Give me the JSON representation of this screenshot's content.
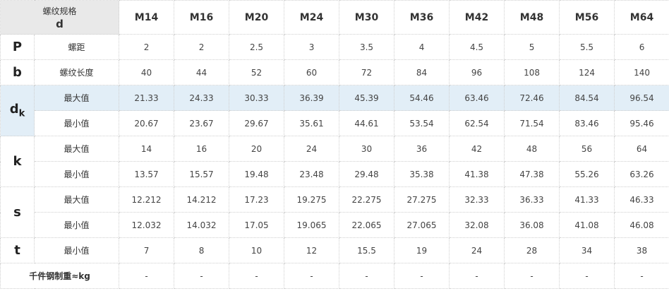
{
  "header": {
    "label": "螺纹规格",
    "symbol": "d",
    "sizes": [
      "M14",
      "M16",
      "M20",
      "M24",
      "M30",
      "M36",
      "M42",
      "M48",
      "M56",
      "M64"
    ]
  },
  "groups": [
    {
      "symbol": "P",
      "rows": [
        {
          "name": "螺距",
          "values": [
            "2",
            "2",
            "2.5",
            "3",
            "3.5",
            "4",
            "4.5",
            "5",
            "5.5",
            "6"
          ]
        }
      ]
    },
    {
      "symbol": "b",
      "rows": [
        {
          "name": "螺纹长度",
          "values": [
            "40",
            "44",
            "52",
            "60",
            "72",
            "84",
            "96",
            "108",
            "124",
            "140"
          ]
        }
      ]
    },
    {
      "symbol": "d",
      "subscript": "k",
      "rows": [
        {
          "name": "最大值",
          "values": [
            "21.33",
            "24.33",
            "30.33",
            "36.39",
            "45.39",
            "54.46",
            "63.46",
            "72.46",
            "84.54",
            "96.54"
          ]
        },
        {
          "name": "最小值",
          "values": [
            "20.67",
            "23.67",
            "29.67",
            "35.61",
            "44.61",
            "53.54",
            "62.54",
            "71.54",
            "83.46",
            "95.46"
          ]
        }
      ]
    },
    {
      "symbol": "k",
      "rows": [
        {
          "name": "最大值",
          "values": [
            "14",
            "16",
            "20",
            "24",
            "30",
            "36",
            "42",
            "48",
            "56",
            "64"
          ]
        },
        {
          "name": "最小值",
          "values": [
            "13.57",
            "15.57",
            "19.48",
            "23.48",
            "29.48",
            "35.38",
            "41.38",
            "47.38",
            "55.26",
            "63.26"
          ]
        }
      ]
    },
    {
      "symbol": "s",
      "rows": [
        {
          "name": "最大值",
          "values": [
            "12.212",
            "14.212",
            "17.23",
            "19.275",
            "22.275",
            "27.275",
            "32.33",
            "36.33",
            "41.33",
            "46.33"
          ]
        },
        {
          "name": "最小值",
          "values": [
            "12.032",
            "14.032",
            "17.05",
            "19.065",
            "22.065",
            "27.065",
            "32.08",
            "36.08",
            "41.08",
            "46.08"
          ]
        }
      ]
    },
    {
      "symbol": "t",
      "rows": [
        {
          "name": "最小值",
          "values": [
            "7",
            "8",
            "10",
            "12",
            "15.5",
            "19",
            "24",
            "28",
            "34",
            "38"
          ]
        }
      ]
    }
  ],
  "weight": {
    "label": "千件钢制重≈kg",
    "values": [
      "-",
      "-",
      "-",
      "-",
      "-",
      "-",
      "-",
      "-",
      "-",
      "-"
    ]
  }
}
